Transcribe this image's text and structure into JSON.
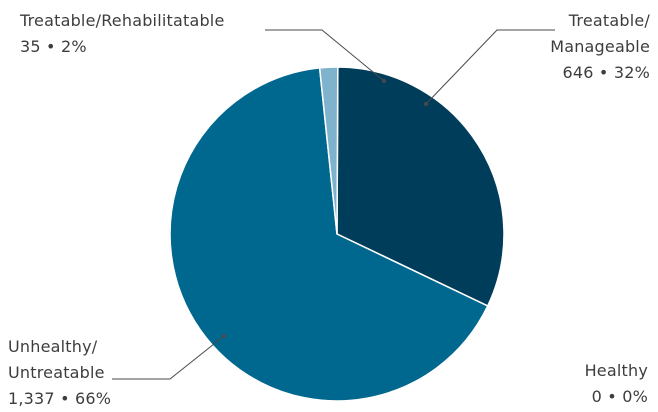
{
  "chart_data": {
    "type": "pie",
    "slices": [
      {
        "label": "Treatable/Manageable",
        "value": 646,
        "percent": "32%",
        "value_text": "646",
        "color": "#003d5a"
      },
      {
        "label": "Healthy",
        "value": 0,
        "percent": "0%",
        "value_text": "0",
        "color": "#7fb2cc"
      },
      {
        "label": "Unhealthy/Untreatable",
        "value": 1337,
        "percent": "66%",
        "value_text": "1,337",
        "color": "#00678f"
      },
      {
        "label": "Treatable/Rehabilitatable",
        "value": 35,
        "percent": "2%",
        "value_text": "35",
        "color": "#7fb2cc"
      }
    ],
    "separator": "•"
  },
  "labels": {
    "rehab": {
      "line1": "Treatable/Rehabilitatable",
      "line2": "35  •  2%"
    },
    "manage": {
      "line1": "Treatable/",
      "line2": "Manageable",
      "line3": "646  •  32%"
    },
    "unhealthy": {
      "line1": "Unhealthy/",
      "line2": "Untreatable",
      "line3": "1,337  •  66%"
    },
    "healthy": {
      "line1": "Healthy",
      "line2": "0  •  0%"
    }
  }
}
